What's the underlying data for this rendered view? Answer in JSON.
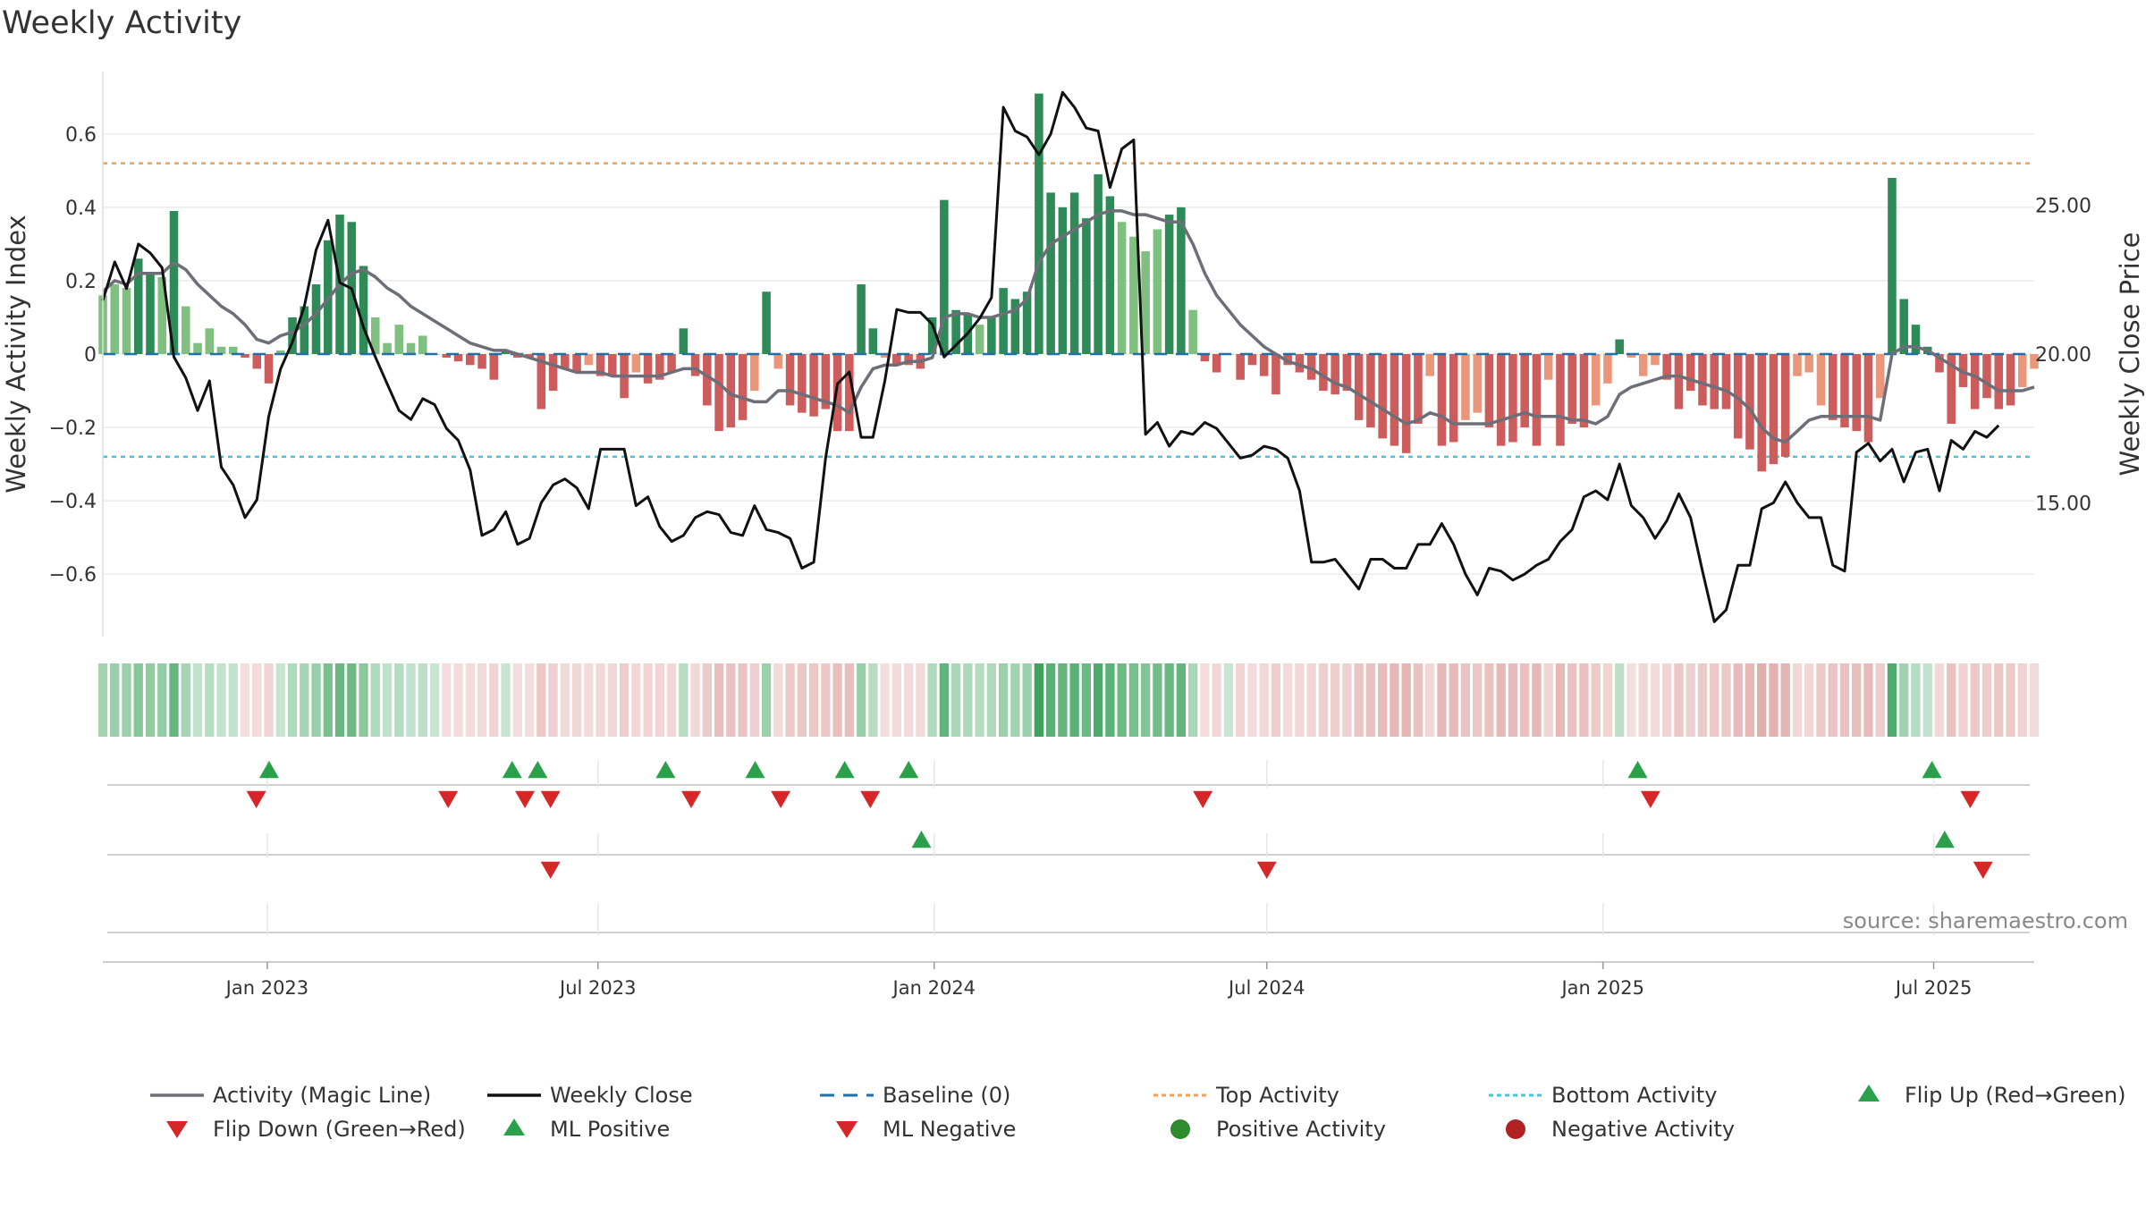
{
  "title": "Weekly Activity",
  "source": "source: sharemaestro.com",
  "colors": {
    "strong_green": "#2e8b57",
    "light_green": "#7fbf7f",
    "strong_red": "#cd5c5c",
    "light_red": "#e9967a",
    "magic_line": "#6e6e78",
    "close": "#111111",
    "baseline": "#1f6fa8",
    "top": "#f0a050",
    "bottom": "#40c8d8",
    "flip_up": "#2aa04a",
    "flip_down": "#d62728",
    "pos": "#2e8b2e",
    "neg": "#b22222"
  },
  "chart_data": {
    "type": "bar",
    "title": "Weekly Activity",
    "ylabel_left": "Weekly Activity Index",
    "ylabel_right": "Weekly Close Price",
    "ylim_left": [
      -0.77,
      0.77
    ],
    "ylim_right": [
      10.5,
      29.5
    ],
    "yticks_left": [
      {
        "v": 0.6,
        "label": "0.6"
      },
      {
        "v": 0.4,
        "label": "0.4"
      },
      {
        "v": 0.2,
        "label": "0.2"
      },
      {
        "v": 0,
        "label": "0"
      },
      {
        "v": -0.2,
        "label": "−0.2"
      },
      {
        "v": -0.4,
        "label": "−0.4"
      },
      {
        "v": -0.6,
        "label": "−0.6"
      }
    ],
    "yticks_right": [
      {
        "v": 25,
        "label": "25.00"
      },
      {
        "v": 20,
        "label": "20.00"
      },
      {
        "v": 15,
        "label": "15.00"
      }
    ],
    "date_range": [
      "2022-10-03",
      "2025-08-25"
    ],
    "xticks": [
      {
        "date": "2023-01-01",
        "label": "Jan 2023"
      },
      {
        "date": "2023-07-01",
        "label": "Jul 2023"
      },
      {
        "date": "2024-01-01",
        "label": "Jan 2024"
      },
      {
        "date": "2024-07-01",
        "label": "Jul 2024"
      },
      {
        "date": "2025-01-01",
        "label": "Jan 2025"
      },
      {
        "date": "2025-07-01",
        "label": "Jul 2025"
      }
    ],
    "top_activity": 0.52,
    "bottom_activity": -0.28,
    "baseline": 0,
    "activity": [
      0.16,
      0.19,
      0.18,
      0.26,
      0.22,
      0.21,
      0.39,
      0.13,
      0.03,
      0.07,
      0.02,
      0.02,
      -0.01,
      -0.04,
      -0.08,
      0.01,
      0.1,
      0.13,
      0.19,
      0.31,
      0.38,
      0.36,
      0.24,
      0.1,
      0.03,
      0.08,
      0.03,
      0.05,
      0.0,
      -0.01,
      -0.02,
      -0.03,
      -0.04,
      -0.07,
      0.01,
      -0.01,
      -0.01,
      -0.15,
      -0.1,
      -0.04,
      -0.05,
      -0.03,
      -0.06,
      -0.06,
      -0.12,
      -0.05,
      -0.08,
      -0.07,
      -0.05,
      0.07,
      -0.06,
      -0.14,
      -0.21,
      -0.2,
      -0.18,
      -0.1,
      0.17,
      -0.04,
      -0.14,
      -0.16,
      -0.17,
      -0.15,
      -0.21,
      -0.21,
      0.19,
      0.07,
      -0.01,
      -0.03,
      -0.03,
      -0.04,
      0.1,
      0.42,
      0.12,
      0.11,
      0.08,
      0.1,
      0.18,
      0.15,
      0.17,
      0.71,
      0.44,
      0.4,
      0.44,
      0.37,
      0.49,
      0.43,
      0.36,
      0.32,
      0.28,
      0.34,
      0.38,
      0.4,
      0.12,
      -0.02,
      -0.05,
      0.0,
      -0.07,
      -0.03,
      -0.06,
      -0.11,
      -0.03,
      -0.05,
      -0.07,
      -0.1,
      -0.11,
      -0.1,
      -0.18,
      -0.2,
      -0.23,
      -0.25,
      -0.27,
      -0.19,
      -0.06,
      -0.25,
      -0.24,
      -0.18,
      -0.16,
      -0.2,
      -0.25,
      -0.24,
      -0.2,
      -0.25,
      -0.07,
      -0.25,
      -0.19,
      -0.2,
      -0.14,
      -0.08,
      0.04,
      -0.01,
      -0.06,
      -0.03,
      -0.07,
      -0.15,
      -0.1,
      -0.14,
      -0.15,
      -0.15,
      -0.23,
      -0.26,
      -0.32,
      -0.3,
      -0.28,
      -0.06,
      -0.05,
      -0.14,
      -0.18,
      -0.2,
      -0.21,
      -0.24,
      -0.12,
      0.48,
      0.15,
      0.08,
      0.02,
      -0.05,
      -0.19,
      -0.09,
      -0.15,
      -0.12,
      -0.15,
      -0.14,
      -0.09,
      -0.04
    ],
    "magic_line": [
      0.17,
      0.2,
      0.19,
      0.22,
      0.22,
      0.22,
      0.25,
      0.23,
      0.19,
      0.16,
      0.13,
      0.11,
      0.08,
      0.04,
      0.03,
      0.05,
      0.06,
      0.08,
      0.11,
      0.15,
      0.19,
      0.22,
      0.23,
      0.21,
      0.18,
      0.16,
      0.13,
      0.11,
      0.09,
      0.07,
      0.05,
      0.03,
      0.02,
      0.01,
      0.01,
      0.0,
      -0.01,
      -0.02,
      -0.03,
      -0.04,
      -0.05,
      -0.05,
      -0.05,
      -0.06,
      -0.06,
      -0.06,
      -0.06,
      -0.06,
      -0.05,
      -0.04,
      -0.04,
      -0.06,
      -0.08,
      -0.11,
      -0.12,
      -0.13,
      -0.13,
      -0.1,
      -0.1,
      -0.11,
      -0.12,
      -0.13,
      -0.14,
      -0.16,
      -0.09,
      -0.04,
      -0.03,
      -0.03,
      -0.02,
      -0.02,
      -0.01,
      0.1,
      0.11,
      0.11,
      0.1,
      0.1,
      0.11,
      0.12,
      0.15,
      0.25,
      0.3,
      0.32,
      0.34,
      0.36,
      0.38,
      0.39,
      0.39,
      0.38,
      0.38,
      0.37,
      0.36,
      0.36,
      0.3,
      0.22,
      0.16,
      0.12,
      0.08,
      0.05,
      0.02,
      0.0,
      -0.02,
      -0.03,
      -0.04,
      -0.06,
      -0.08,
      -0.09,
      -0.11,
      -0.13,
      -0.15,
      -0.17,
      -0.19,
      -0.18,
      -0.16,
      -0.17,
      -0.19,
      -0.19,
      -0.19,
      -0.19,
      -0.18,
      -0.17,
      -0.16,
      -0.17,
      -0.17,
      -0.17,
      -0.18,
      -0.18,
      -0.19,
      -0.17,
      -0.11,
      -0.09,
      -0.08,
      -0.07,
      -0.06,
      -0.06,
      -0.07,
      -0.08,
      -0.09,
      -0.1,
      -0.12,
      -0.15,
      -0.2,
      -0.23,
      -0.24,
      -0.21,
      -0.18,
      -0.17,
      -0.17,
      -0.17,
      -0.17,
      -0.17,
      -0.18,
      0.0,
      0.02,
      0.02,
      0.01,
      -0.01,
      -0.03,
      -0.05,
      -0.06,
      -0.08,
      -0.1,
      -0.1,
      -0.1,
      -0.09
    ],
    "weekly_close": [
      21.8,
      23.1,
      22.2,
      23.7,
      23.4,
      22.9,
      19.9,
      19.2,
      18.1,
      19.1,
      16.2,
      15.6,
      14.5,
      15.1,
      17.9,
      19.5,
      20.4,
      21.6,
      23.5,
      24.5,
      22.4,
      22.2,
      20.9,
      19.9,
      19.0,
      18.1,
      17.8,
      18.5,
      18.3,
      17.5,
      17.1,
      16.1,
      13.9,
      14.1,
      14.7,
      13.6,
      13.8,
      15.0,
      15.6,
      15.8,
      15.5,
      14.8,
      16.8,
      16.8,
      16.8,
      14.9,
      15.2,
      14.2,
      13.7,
      13.9,
      14.5,
      14.7,
      14.6,
      14.0,
      13.9,
      14.9,
      14.1,
      14.0,
      13.8,
      12.8,
      13.0,
      16.5,
      19.0,
      19.4,
      17.2,
      17.2,
      19.1,
      21.5,
      21.4,
      21.4,
      21.0,
      19.9,
      20.3,
      20.7,
      21.2,
      21.9,
      28.3,
      27.5,
      27.3,
      26.7,
      27.4,
      28.8,
      28.3,
      27.6,
      27.5,
      25.6,
      26.9,
      27.2,
      17.3,
      17.7,
      16.9,
      17.4,
      17.3,
      17.7,
      17.5,
      17.0,
      16.5,
      16.6,
      16.9,
      16.8,
      16.5,
      15.4,
      13.0,
      13.0,
      13.1,
      12.6,
      12.1,
      13.1,
      13.1,
      12.8,
      12.8,
      13.6,
      13.6,
      14.3,
      13.6,
      12.6,
      11.9,
      12.8,
      12.7,
      12.4,
      12.6,
      12.9,
      13.1,
      13.7,
      14.1,
      15.2,
      15.4,
      15.1,
      16.3,
      14.9,
      14.5,
      13.8,
      14.4,
      15.3,
      14.5,
      12.7,
      11.0,
      11.4,
      12.9,
      12.9,
      14.8,
      15.0,
      15.7,
      15.0,
      14.5,
      14.5,
      12.9,
      12.7,
      16.7,
      17.0,
      16.4,
      16.8,
      15.7,
      16.7,
      16.8,
      15.4,
      17.1,
      16.8,
      17.4,
      17.2,
      17.6
    ],
    "flip_up": [
      "2023-01-02",
      "2023-05-15",
      "2023-05-29",
      "2023-08-07",
      "2023-09-25",
      "2023-11-13",
      "2023-12-18",
      "2025-01-20",
      "2025-06-30"
    ],
    "flip_down": [
      "2022-12-26",
      "2023-04-10",
      "2023-05-22",
      "2023-06-05",
      "2023-08-21",
      "2023-10-09",
      "2023-11-27",
      "2024-05-27",
      "2025-01-27",
      "2025-07-21"
    ],
    "ml_positive": [
      "2023-12-25",
      "2025-07-07"
    ],
    "ml_negative": [
      "2023-06-05",
      "2024-07-01",
      "2025-07-28"
    ],
    "legend": [
      {
        "key": "magic",
        "label": "Activity (Magic Line)"
      },
      {
        "key": "close",
        "label": "Weekly Close"
      },
      {
        "key": "baseline",
        "label": "Baseline (0)"
      },
      {
        "key": "top",
        "label": "Top Activity"
      },
      {
        "key": "bottom",
        "label": "Bottom Activity"
      },
      {
        "key": "flipup",
        "label": "Flip Up (Red→Green)"
      },
      {
        "key": "flipdown",
        "label": "Flip Down (Green→Red)"
      },
      {
        "key": "mlpos",
        "label": "ML Positive"
      },
      {
        "key": "mlneg",
        "label": "ML Negative"
      },
      {
        "key": "pos",
        "label": "Positive Activity"
      },
      {
        "key": "neg",
        "label": "Negative Activity"
      }
    ]
  }
}
